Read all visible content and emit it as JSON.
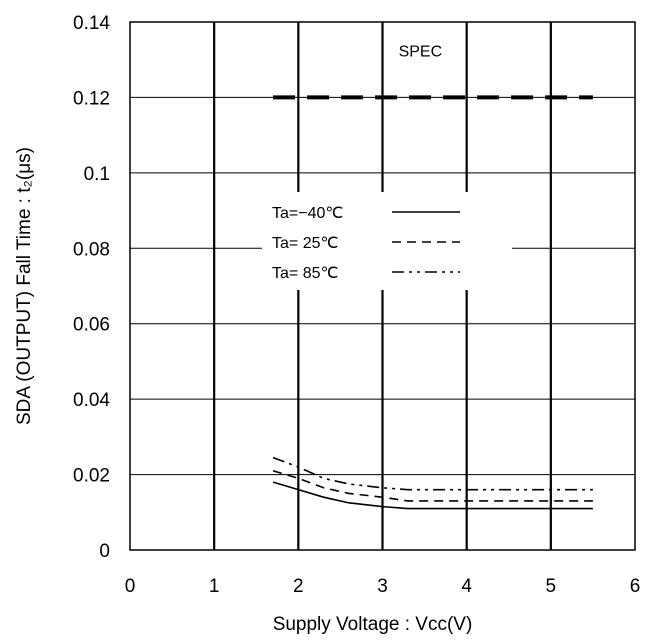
{
  "chart_data": {
    "type": "line",
    "xlabel": "Supply Voltage : Vcc(V)",
    "ylabel": "SDA (OUTPUT) Fall Time : t₂(μs)",
    "xlim": [
      0,
      6
    ],
    "ylim": [
      0,
      0.14
    ],
    "x_ticks": [
      "0",
      "1",
      "2",
      "3",
      "4",
      "5",
      "6"
    ],
    "y_ticks": [
      "0",
      "0.02",
      "0.04",
      "0.06",
      "0.08",
      "0.1",
      "0.12",
      "0.14"
    ],
    "grid": true,
    "legend_position": "middle-center",
    "series": [
      {
        "name": "Ta=−40℃",
        "style": "solid",
        "x": [
          1.7,
          2.0,
          2.3,
          2.6,
          3.0,
          3.3,
          4.0,
          5.0,
          5.5
        ],
        "y": [
          0.018,
          0.016,
          0.014,
          0.0125,
          0.0115,
          0.011,
          0.011,
          0.011,
          0.011
        ]
      },
      {
        "name": "Ta= 25℃",
        "style": "dashed",
        "x": [
          1.7,
          2.0,
          2.3,
          2.6,
          3.0,
          3.3,
          4.0,
          5.0,
          5.5
        ],
        "y": [
          0.021,
          0.019,
          0.0165,
          0.015,
          0.014,
          0.013,
          0.013,
          0.013,
          0.013
        ]
      },
      {
        "name": "Ta= 85℃",
        "style": "dashdotdot",
        "x": [
          1.7,
          2.0,
          2.3,
          2.6,
          3.0,
          3.3,
          4.0,
          5.0,
          5.5
        ],
        "y": [
          0.0245,
          0.022,
          0.019,
          0.0175,
          0.0165,
          0.016,
          0.016,
          0.016,
          0.016
        ]
      }
    ],
    "spec": {
      "label": "SPEC",
      "value": 0.12,
      "x_range": [
        1.7,
        5.5
      ]
    },
    "colors": {
      "line": "#000000",
      "grid": "#000000",
      "background": "#ffffff"
    }
  }
}
